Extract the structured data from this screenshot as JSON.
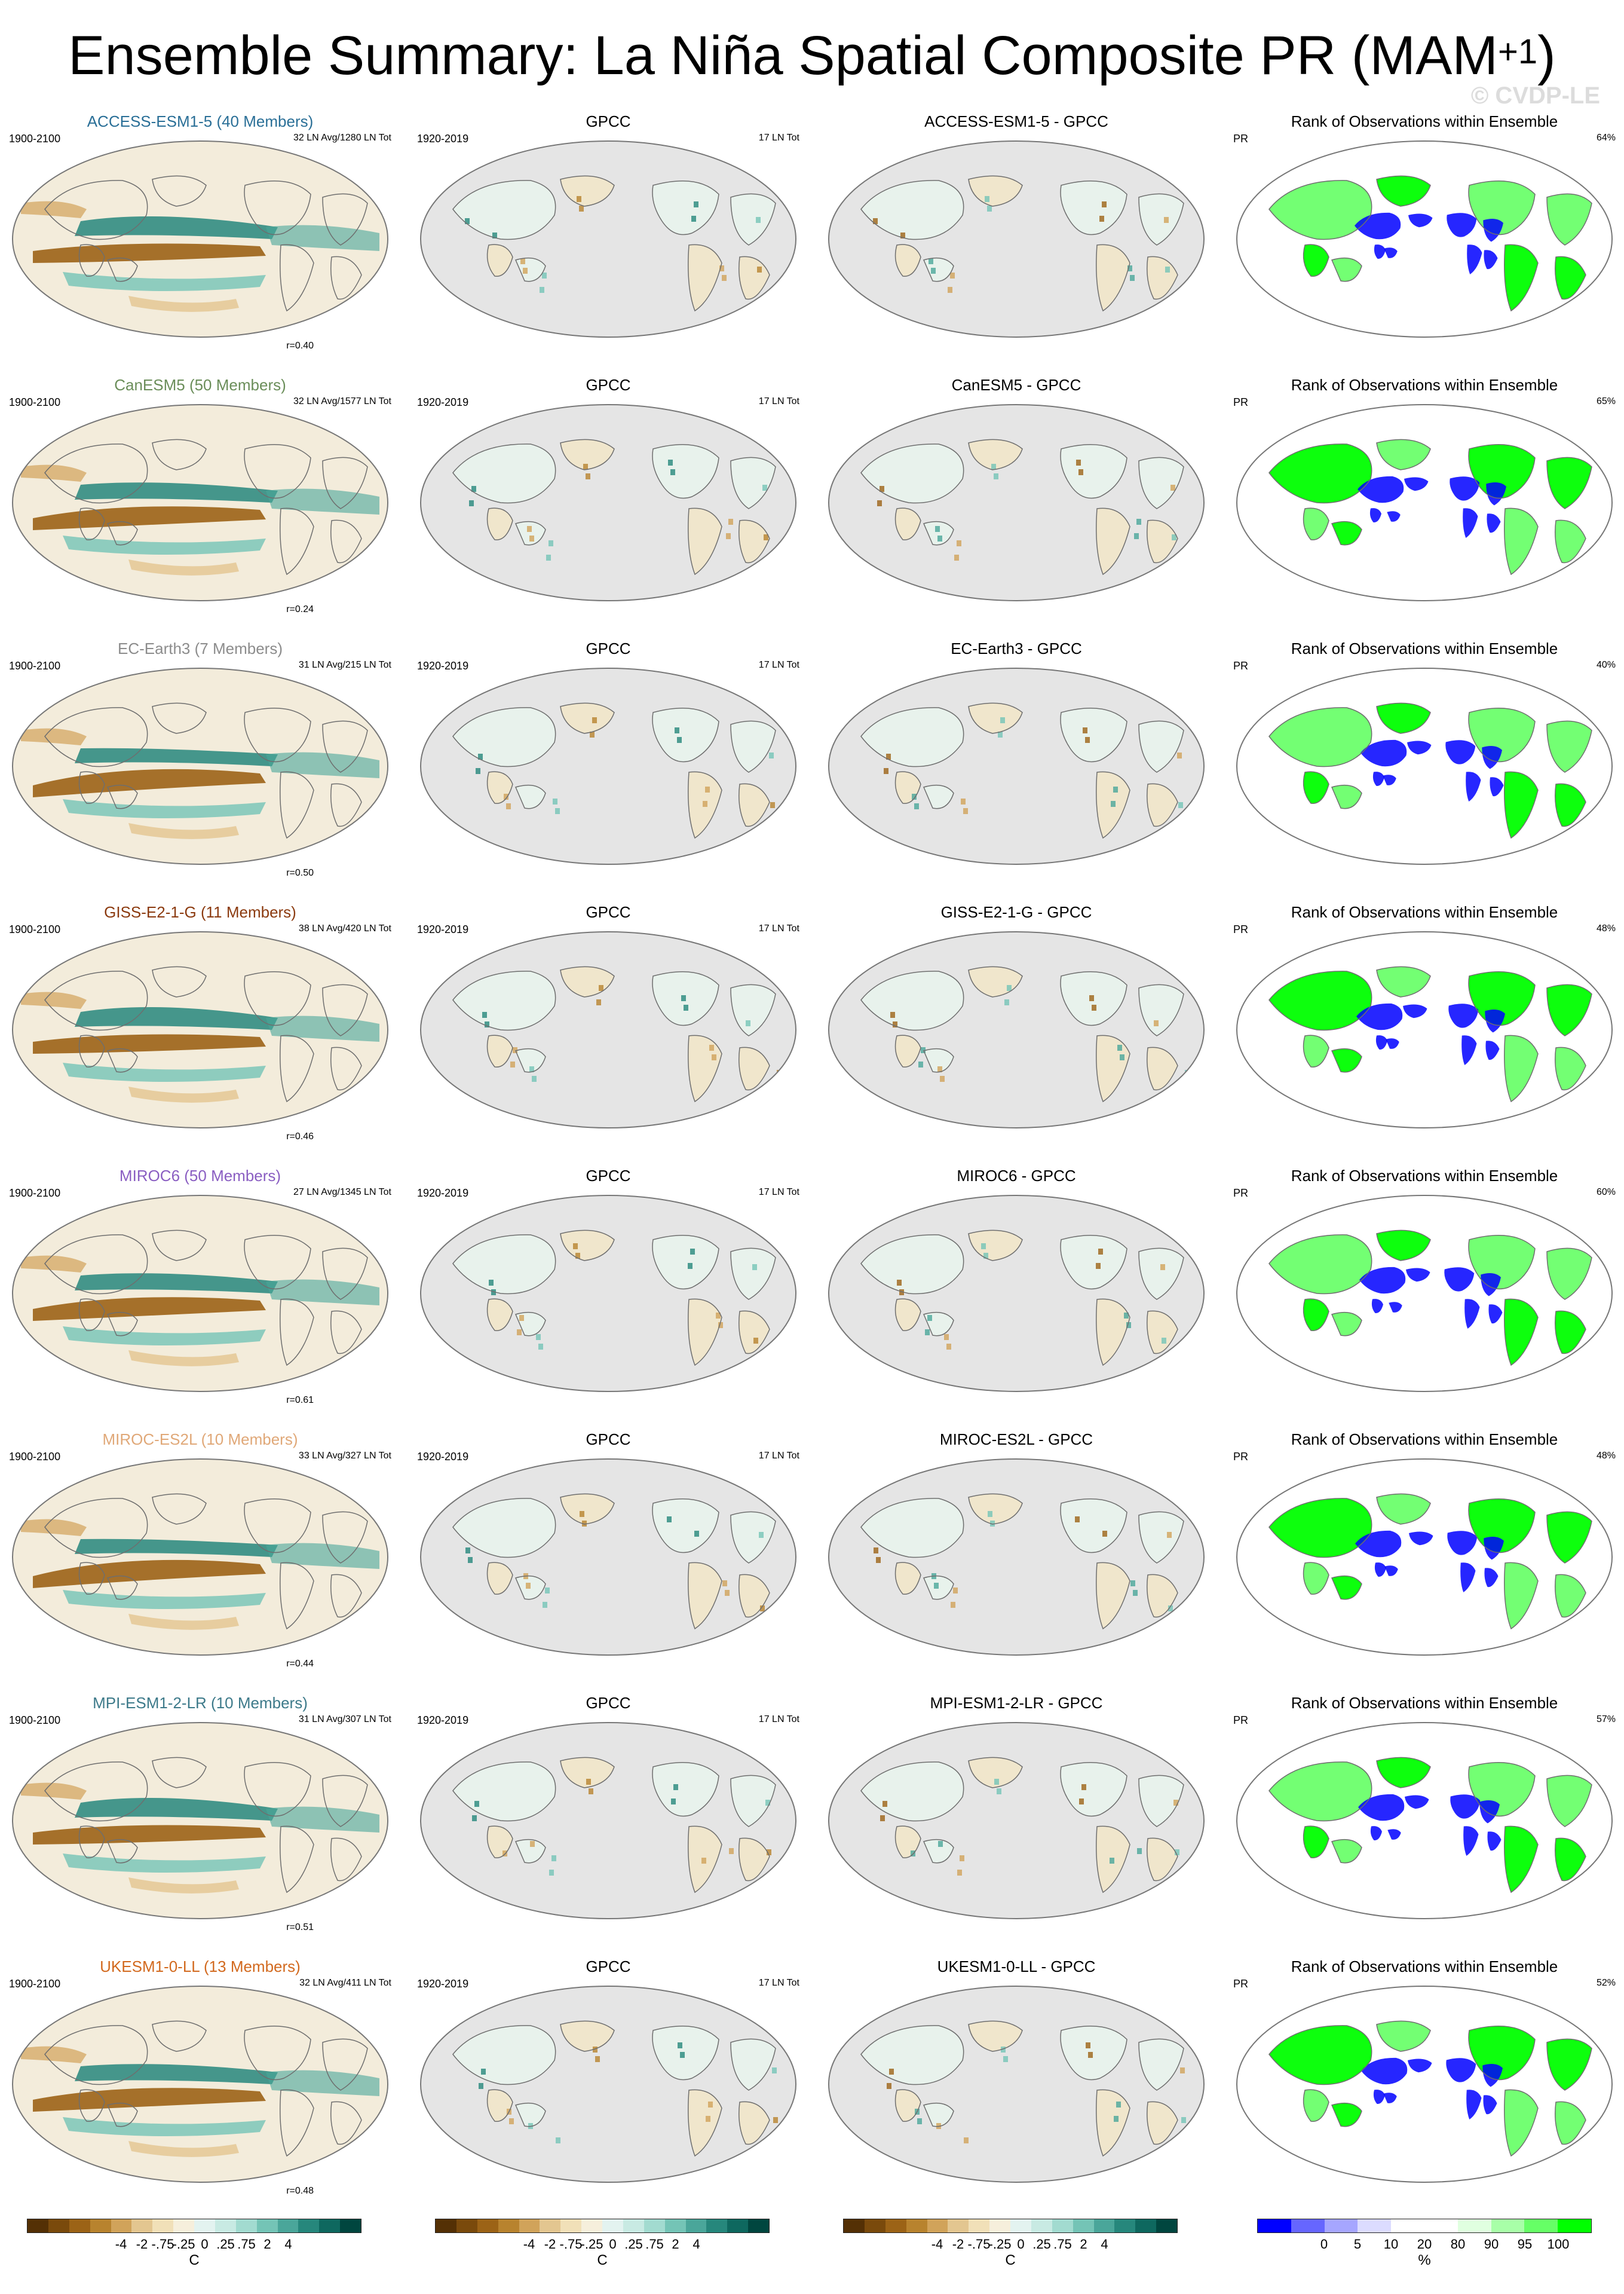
{
  "figure": {
    "title_main": "Ensemble Summary: La Niña Spatial Composite PR (MAM",
    "title_sup": "+1",
    "title_close": ")",
    "watermark": "© CVDP-LE"
  },
  "columns": {
    "obs_title": "GPCC",
    "obs_period": "1920-2019",
    "obs_events": "17 LN Tot",
    "rank_title": "Rank of Observations within Ensemble",
    "rank_var": "PR"
  },
  "rows": [
    {
      "model": "ACCESS-ESM1-5 (40 Members)",
      "model_color": "#2a6f97",
      "period": "1900-2100",
      "events": "32 LN Avg/1280 LN Tot",
      "corr": "r=0.40",
      "diff_title": "ACCESS-ESM1-5 - GPCC",
      "rank_pct": "64%",
      "pattern": 0
    },
    {
      "model": "CanESM5 (50 Members)",
      "model_color": "#6b8e5a",
      "period": "1900-2100",
      "events": "32 LN Avg/1577 LN Tot",
      "corr": "r=0.24",
      "diff_title": "CanESM5 - GPCC",
      "rank_pct": "65%",
      "pattern": 1
    },
    {
      "model": "EC-Earth3 (7 Members)",
      "model_color": "#8c8c8c",
      "period": "1900-2100",
      "events": "31 LN Avg/215 LN Tot",
      "corr": "r=0.50",
      "diff_title": "EC-Earth3 - GPCC",
      "rank_pct": "40%",
      "pattern": 2
    },
    {
      "model": "GISS-E2-1-G (11 Members)",
      "model_color": "#8b3a0f",
      "period": "1900-2100",
      "events": "38 LN Avg/420 LN Tot",
      "corr": "r=0.46",
      "diff_title": "GISS-E2-1-G - GPCC",
      "rank_pct": "48%",
      "pattern": 3
    },
    {
      "model": "MIROC6 (50 Members)",
      "model_color": "#8a5ec2",
      "period": "1900-2100",
      "events": "27 LN Avg/1345 LN Tot",
      "corr": "r=0.61",
      "diff_title": "MIROC6 - GPCC",
      "rank_pct": "60%",
      "pattern": 4
    },
    {
      "model": "MIROC-ES2L (10 Members)",
      "model_color": "#e0a878",
      "period": "1900-2100",
      "events": "33 LN Avg/327 LN Tot",
      "corr": "r=0.44",
      "diff_title": "MIROC-ES2L - GPCC",
      "rank_pct": "48%",
      "pattern": 5
    },
    {
      "model": "MPI-ESM1-2-LR (10 Members)",
      "model_color": "#3d7a8a",
      "period": "1900-2100",
      "events": "31 LN Avg/307 LN Tot",
      "corr": "r=0.51",
      "diff_title": "MPI-ESM1-2-LR - GPCC",
      "rank_pct": "57%",
      "pattern": 6
    },
    {
      "model": "UKESM1-0-LL (13 Members)",
      "model_color": "#d2691e",
      "period": "1900-2100",
      "events": "32 LN Avg/411 LN Tot",
      "corr": "r=0.48",
      "diff_title": "UKESM1-0-LL - GPCC",
      "rank_pct": "52%",
      "pattern": 7
    }
  ],
  "colorbar_anomaly": {
    "colors": [
      "#543005",
      "#7a4a0c",
      "#9c6316",
      "#b8832e",
      "#d1a35a",
      "#e3c690",
      "#f1e0b8",
      "#f6efdc",
      "#e3f3f0",
      "#c8eae3",
      "#a2dbd0",
      "#74c4b6",
      "#4aa69a",
      "#26877c",
      "#0e685f",
      "#00463f"
    ],
    "labels": [
      "-4",
      "-2",
      "-.75",
      "-.25",
      "0",
      ".25",
      ".75",
      "2",
      "4"
    ],
    "unit": "C"
  },
  "colorbar_rank": {
    "colors": [
      "#0000ff",
      "#6666ff",
      "#a6a6ff",
      "#dcdcff",
      "#ffffff",
      "#ffffff",
      "#e0ffe0",
      "#a8ffa8",
      "#66ff66",
      "#00ff00"
    ],
    "labels": [
      "0",
      "5",
      "10",
      "20",
      "80",
      "90",
      "95",
      "100"
    ],
    "unit": "%"
  }
}
